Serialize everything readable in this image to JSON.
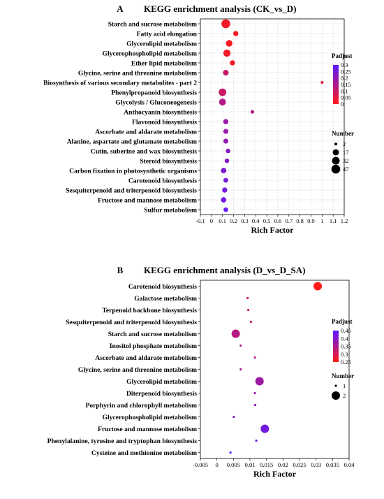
{
  "chart_data": [
    {
      "type": "scatter",
      "panel_label": "A",
      "title": "KEGG enrichment analysis (CK_vs_D)",
      "xlabel": "Rich Factor",
      "xlim": [
        -0.1,
        1.2
      ],
      "x_ticks": [
        -0.1,
        0,
        0.1,
        0.2,
        0.3,
        0.4,
        0.5,
        0.6,
        0.7,
        0.8,
        0.9,
        1,
        1.1,
        1.2
      ],
      "x_tick_labels": [
        "-0.1",
        "0",
        "0.1",
        "0.2",
        "0.3",
        "0.4",
        "0.5",
        "0.6",
        "0.7",
        "0.8",
        "0.9",
        "1",
        "1.1",
        "1.2"
      ],
      "grid": true,
      "color_legend": {
        "title": "Padjust",
        "min": 0,
        "max": 0.3,
        "ticks": [
          "0.3",
          "0.25",
          "0.2",
          "0.15",
          "0.1",
          "0.05",
          "0"
        ],
        "low_color": "#ff1a1a",
        "high_color": "#5a1aff"
      },
      "size_legend": {
        "title": "Number",
        "values": [
          2,
          17,
          32,
          47
        ],
        "labels": [
          "2",
          "17",
          "32",
          "47"
        ],
        "min": 2,
        "max": 47
      },
      "points": [
        {
          "pathway": "Starch and sucrose metabolism",
          "rich_factor": 0.13,
          "number": 47,
          "padjust": 0.02
        },
        {
          "pathway": "Fatty acid elongation",
          "rich_factor": 0.22,
          "number": 9,
          "padjust": 0.01
        },
        {
          "pathway": "Glycerolipid metabolism",
          "rich_factor": 0.16,
          "number": 20,
          "padjust": 0.01
        },
        {
          "pathway": "Glycerophospholipid metabolism",
          "rich_factor": 0.14,
          "number": 26,
          "padjust": 0.02
        },
        {
          "pathway": "Ether lipid metabolism",
          "rich_factor": 0.19,
          "number": 9,
          "padjust": 0.02
        },
        {
          "pathway": "Glycine, serine and threonine metabolism",
          "rich_factor": 0.13,
          "number": 12,
          "padjust": 0.1
        },
        {
          "pathway": "Biosynthesis of various secondary metabolites - part 2",
          "rich_factor": 1.0,
          "number": 2,
          "padjust": 0.05
        },
        {
          "pathway": "Phenylpropanoid biosynthesis",
          "rich_factor": 0.1,
          "number": 30,
          "padjust": 0.1
        },
        {
          "pathway": "Glycolysis / Gluconeogenesis",
          "rich_factor": 0.1,
          "number": 22,
          "padjust": 0.14
        },
        {
          "pathway": "Anthocyanin biosynthesis",
          "rich_factor": 0.37,
          "number": 3,
          "padjust": 0.14
        },
        {
          "pathway": "Flavonoid biosynthesis",
          "rich_factor": 0.13,
          "number": 9,
          "padjust": 0.18
        },
        {
          "pathway": "Ascorbate and aldarate metabolism",
          "rich_factor": 0.13,
          "number": 8,
          "padjust": 0.19
        },
        {
          "pathway": "Alanine, aspartate and glutamate metabolism",
          "rich_factor": 0.13,
          "number": 8,
          "padjust": 0.2
        },
        {
          "pathway": "Cutin, suberine and wax biosynthesis",
          "rich_factor": 0.15,
          "number": 6,
          "padjust": 0.22
        },
        {
          "pathway": "Steroid biosynthesis",
          "rich_factor": 0.14,
          "number": 6,
          "padjust": 0.22
        },
        {
          "pathway": "Carbon fixation in photosynthetic organisms",
          "rich_factor": 0.11,
          "number": 11,
          "padjust": 0.24
        },
        {
          "pathway": "Carotenoid biosynthesis",
          "rich_factor": 0.13,
          "number": 7,
          "padjust": 0.25
        },
        {
          "pathway": "Sesquiterpenoid and triterpenoid biosynthesis",
          "rich_factor": 0.12,
          "number": 9,
          "padjust": 0.25
        },
        {
          "pathway": "Fructose and mannose metabolism",
          "rich_factor": 0.11,
          "number": 10,
          "padjust": 0.26
        },
        {
          "pathway": "Sulfur metabolism",
          "rich_factor": 0.13,
          "number": 6,
          "padjust": 0.28
        }
      ]
    },
    {
      "type": "scatter",
      "panel_label": "B",
      "title": "KEGG enrichment analysis (D_vs_D_SA)",
      "xlabel": "Rich Factor",
      "xlim": [
        -0.005,
        0.04
      ],
      "x_ticks": [
        -0.005,
        0,
        0.005,
        0.01,
        0.015,
        0.02,
        0.025,
        0.03,
        0.035,
        0.04
      ],
      "x_tick_labels": [
        "-0.005",
        "0",
        "0.005",
        "0.01",
        "0.015",
        "0.02",
        "0.025",
        "0.03",
        "0.035",
        "0.04"
      ],
      "grid": false,
      "color_legend": {
        "title": "Padjust",
        "min": 0.25,
        "max": 0.45,
        "ticks": [
          "0.45",
          "0.4",
          "0.35",
          "0.3",
          "0.25"
        ],
        "low_color": "#ff1a1a",
        "high_color": "#5a1aff"
      },
      "size_legend": {
        "title": "Number",
        "values": [
          1,
          2
        ],
        "labels": [
          "1",
          "2"
        ],
        "min": 1,
        "max": 2
      },
      "points": [
        {
          "pathway": "Carotenoid biosynthesis",
          "rich_factor": 0.0305,
          "number": 2,
          "padjust": 0.25
        },
        {
          "pathway": "Galactose metabolism",
          "rich_factor": 0.0093,
          "number": 1,
          "padjust": 0.3
        },
        {
          "pathway": "Terpenoid backbone biosynthesis",
          "rich_factor": 0.0095,
          "number": 1,
          "padjust": 0.3
        },
        {
          "pathway": "Sesquiterpenoid and triterpenoid biosynthesis",
          "rich_factor": 0.0103,
          "number": 1,
          "padjust": 0.31
        },
        {
          "pathway": "Starch and sucrose metabolism",
          "rich_factor": 0.0057,
          "number": 2,
          "padjust": 0.34
        },
        {
          "pathway": "Inositol phosphate metabolism",
          "rich_factor": 0.0072,
          "number": 1,
          "padjust": 0.34
        },
        {
          "pathway": "Ascorbate and aldarate metabolism",
          "rich_factor": 0.0115,
          "number": 1,
          "padjust": 0.35
        },
        {
          "pathway": "Glycine, serine and threonine metabolism",
          "rich_factor": 0.0072,
          "number": 1,
          "padjust": 0.36
        },
        {
          "pathway": "Glycerolipid metabolism",
          "rich_factor": 0.0129,
          "number": 2,
          "padjust": 0.37
        },
        {
          "pathway": "Diterpenoid biosynthesis",
          "rich_factor": 0.0115,
          "number": 1,
          "padjust": 0.37
        },
        {
          "pathway": "Porphyrin and chlorophyll metabolism",
          "rich_factor": 0.0116,
          "number": 1,
          "padjust": 0.38
        },
        {
          "pathway": "Glycerophospholipid metabolism",
          "rich_factor": 0.0051,
          "number": 1,
          "padjust": 0.4
        },
        {
          "pathway": "Fructose and mannose metabolism",
          "rich_factor": 0.0145,
          "number": 2,
          "padjust": 0.42
        },
        {
          "pathway": "Phenylalanine, tyrosine and tryptophan biosynthesis",
          "rich_factor": 0.0119,
          "number": 1,
          "padjust": 0.43
        },
        {
          "pathway": "Cysteine and methionine metabolism",
          "rich_factor": 0.0041,
          "number": 1,
          "padjust": 0.45
        }
      ]
    }
  ]
}
